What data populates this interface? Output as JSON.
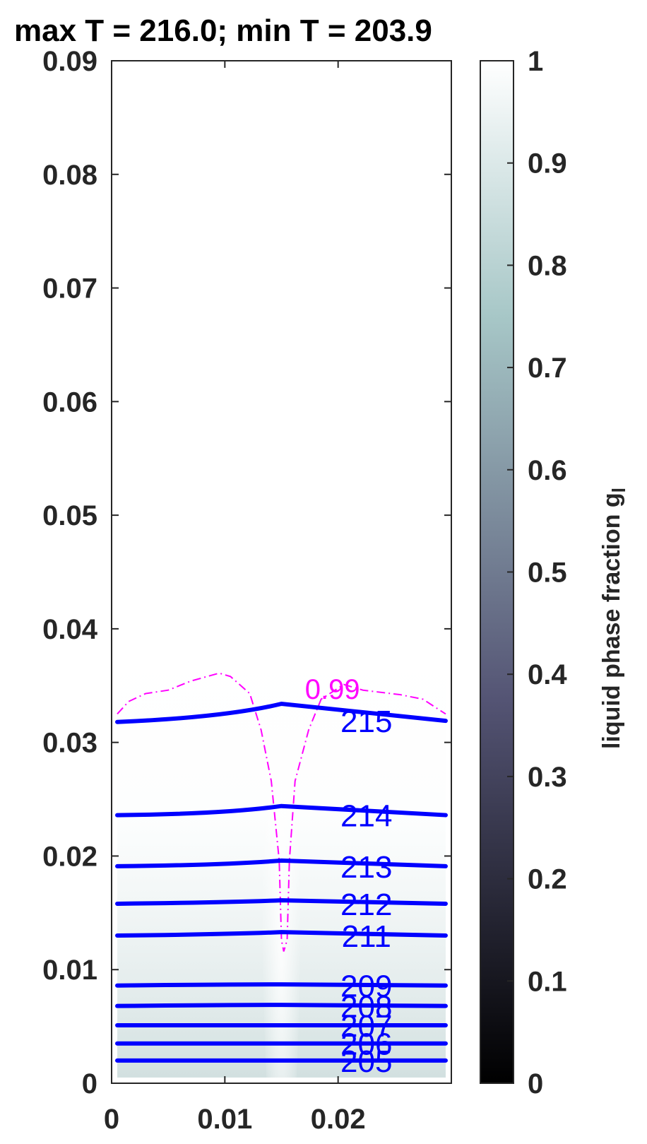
{
  "chart_data": {
    "type": "heatmap",
    "title": "max T = 216.0; min T = 203.9",
    "colorbar_label": "liquid phase fraction g",
    "colorbar_label_subscript": "l",
    "xlim": [
      0,
      0.03
    ],
    "ylim": [
      0,
      0.09
    ],
    "x_ticks": [
      0,
      0.01,
      0.02
    ],
    "x_tick_labels": [
      "0",
      "0.01",
      "0.02"
    ],
    "y_ticks": [
      0,
      0.01,
      0.02,
      0.03,
      0.04,
      0.05,
      0.06,
      0.07,
      0.08,
      0.09
    ],
    "y_tick_labels": [
      "0",
      "0.01",
      "0.02",
      "0.03",
      "0.04",
      "0.05",
      "0.06",
      "0.07",
      "0.08",
      "0.09"
    ],
    "colorbar_range": [
      0,
      1
    ],
    "colorbar_ticks": [
      0,
      0.1,
      0.2,
      0.3,
      0.4,
      0.5,
      0.6,
      0.7,
      0.8,
      0.9,
      1
    ],
    "colorbar_tick_labels": [
      "0",
      "0.1",
      "0.2",
      "0.3",
      "0.4",
      "0.5",
      "0.6",
      "0.7",
      "0.8",
      "0.9",
      "1"
    ],
    "colormap": "bone",
    "colors": {
      "temperature_contours": "#0000ff",
      "fraction_contour": "#ff00ff"
    },
    "liquid_fraction_field": {
      "min_near_bottom": 0.9,
      "value_above_front": 1.0,
      "front_height": 0.035
    },
    "temperature_contours": [
      {
        "label": "215",
        "level": 215,
        "y": [
          0.0318,
          0.0322,
          0.0334,
          0.0319
        ],
        "x": [
          0.0005,
          0.01,
          0.015,
          0.0295
        ]
      },
      {
        "label": "214",
        "level": 214,
        "y": [
          0.0236,
          0.0237,
          0.0244,
          0.0236
        ],
        "x": [
          0.0005,
          0.01,
          0.015,
          0.0295
        ]
      },
      {
        "label": "213",
        "level": 213,
        "y": [
          0.0191,
          0.0192,
          0.0196,
          0.0191
        ],
        "x": [
          0.0005,
          0.01,
          0.015,
          0.0295
        ]
      },
      {
        "label": "212",
        "level": 212,
        "y": [
          0.0158,
          0.0159,
          0.0161,
          0.0158
        ],
        "x": [
          0.0005,
          0.01,
          0.015,
          0.0295
        ]
      },
      {
        "label": "211",
        "level": 211,
        "y": [
          0.013,
          0.0131,
          0.0133,
          0.013
        ],
        "x": [
          0.0005,
          0.01,
          0.015,
          0.0295
        ]
      },
      {
        "label": "209",
        "level": 209,
        "y": [
          0.0086,
          0.0087,
          0.0087,
          0.0086
        ],
        "x": [
          0.0005,
          0.01,
          0.015,
          0.0295
        ]
      },
      {
        "label": "208",
        "level": 208,
        "y": [
          0.0068,
          0.0069,
          0.0069,
          0.0068
        ],
        "x": [
          0.0005,
          0.01,
          0.015,
          0.0295
        ]
      },
      {
        "label": "207",
        "level": 207,
        "y": [
          0.0051,
          0.0051,
          0.0051,
          0.0051
        ],
        "x": [
          0.0005,
          0.01,
          0.015,
          0.0295
        ]
      },
      {
        "label": "206",
        "level": 206,
        "y": [
          0.0035,
          0.0035,
          0.0035,
          0.0035
        ],
        "x": [
          0.0005,
          0.01,
          0.015,
          0.0295
        ]
      },
      {
        "label": "205",
        "level": 205,
        "y": [
          0.002,
          0.002,
          0.002,
          0.002
        ],
        "x": [
          0.0005,
          0.01,
          0.015,
          0.0295
        ]
      }
    ],
    "fraction_contour": {
      "label": "0.99",
      "level": 0.99,
      "x": [
        0.0005,
        0.0015,
        0.003,
        0.005,
        0.007,
        0.0095,
        0.0105,
        0.0122,
        0.0132,
        0.0141,
        0.0148,
        0.015,
        0.0152,
        0.0155,
        0.0157,
        0.0162,
        0.0174,
        0.0185,
        0.0205,
        0.0222,
        0.0255,
        0.0275,
        0.0295
      ],
      "y": [
        0.0325,
        0.0336,
        0.0343,
        0.0346,
        0.0354,
        0.0361,
        0.0358,
        0.0343,
        0.0311,
        0.0266,
        0.0196,
        0.0126,
        0.0116,
        0.0126,
        0.0196,
        0.0266,
        0.0311,
        0.0338,
        0.0351,
        0.0346,
        0.0342,
        0.0338,
        0.0325
      ]
    }
  }
}
